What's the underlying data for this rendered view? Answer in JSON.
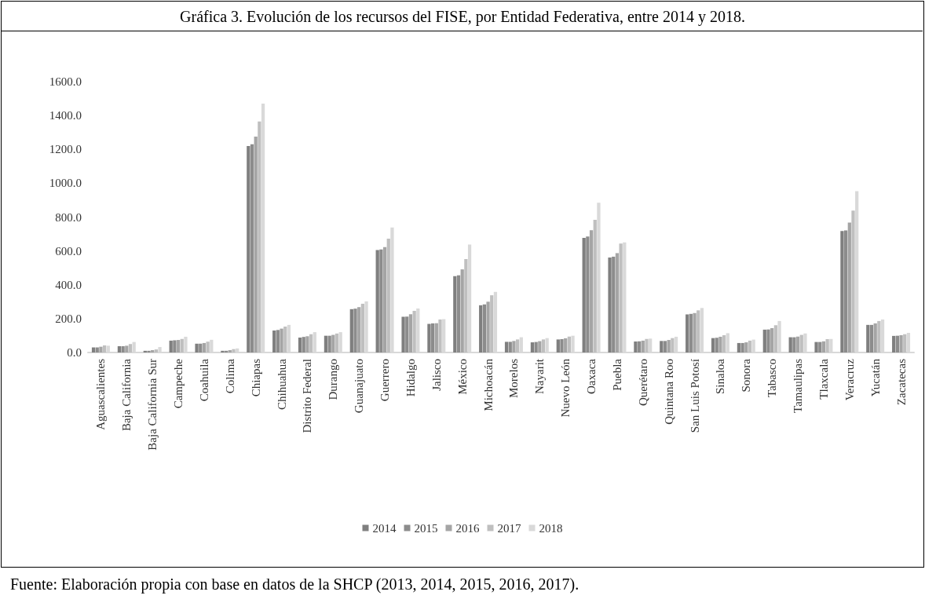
{
  "chart_data": {
    "type": "bar",
    "title": "Gráfica 3. Evolución de los recursos del FISE, por Entidad Federativa, entre 2014 y 2018.",
    "annotations": [
      "Fuente: Elaboración propia con base en datos de la SHCP (2013, 2014, 2015, 2016, 2017)."
    ],
    "categories": [
      "Aguascalientes",
      "Baja California",
      "Baja California Sur",
      "Campeche",
      "Coahuila",
      "Colima",
      "Chiapas",
      "Chihuahua",
      "Distrito Federal",
      "Durango",
      "Guanajuato",
      "Guerrero",
      "Hidalgo",
      "Jalisco",
      "México",
      "Michoacán",
      "Morelos",
      "Nayarit",
      "Nuevo León",
      "Oaxaca",
      "Puebla",
      "Querétaro",
      "Quintana Roo",
      "San Luis Potosí",
      "Sinaloa",
      "Sonora",
      "Tabasco",
      "Tamaulipas",
      "Tlaxcala",
      "Veracruz",
      "Yucatán",
      "Zacatecas"
    ],
    "series": [
      {
        "name": "2014",
        "color": "#7f7f7f",
        "values": [
          30,
          37,
          10,
          70,
          52,
          10,
          1220,
          130,
          88,
          99,
          256,
          605,
          211,
          169,
          451,
          279,
          63,
          60,
          77,
          677,
          561,
          65,
          68,
          225,
          85,
          56,
          135,
          90,
          62,
          718,
          163,
          98
        ]
      },
      {
        "name": "2015",
        "color": "#8c8c8c",
        "values": [
          30,
          37,
          10,
          72,
          52,
          10,
          1230,
          133,
          92,
          99,
          259,
          609,
          212,
          172,
          456,
          284,
          63,
          62,
          79,
          685,
          566,
          66,
          68,
          228,
          87,
          56,
          136,
          90,
          62,
          721,
          163,
          99
        ]
      },
      {
        "name": "2016",
        "color": "#a5a5a5",
        "values": [
          34,
          40,
          14,
          74,
          56,
          14,
          1275,
          141,
          96,
          104,
          268,
          623,
          226,
          173,
          491,
          300,
          68,
          67,
          84,
          722,
          587,
          70,
          74,
          233,
          93,
          60,
          144,
          94,
          66,
          767,
          172,
          102
        ]
      },
      {
        "name": "2017",
        "color": "#bfbfbf",
        "values": [
          42,
          50,
          18,
          80,
          64,
          20,
          1365,
          153,
          108,
          112,
          288,
          672,
          246,
          195,
          552,
          338,
          77,
          77,
          94,
          784,
          643,
          80,
          85,
          249,
          102,
          70,
          161,
          104,
          79,
          838,
          186,
          108
        ]
      },
      {
        "name": "2018",
        "color": "#d9d9d9",
        "values": [
          40,
          62,
          32,
          93,
          75,
          24,
          1470,
          163,
          120,
          120,
          302,
          739,
          260,
          197,
          638,
          358,
          90,
          85,
          99,
          885,
          651,
          82,
          93,
          263,
          114,
          76,
          186,
          113,
          80,
          953,
          195,
          116
        ]
      }
    ],
    "ylim": [
      0,
      1600
    ],
    "yticks": [
      {
        "value": 0,
        "label": "0.0"
      },
      {
        "value": 200,
        "label": "200.0"
      },
      {
        "value": 400,
        "label": "400.0"
      },
      {
        "value": 600,
        "label": "600.0"
      },
      {
        "value": 800,
        "label": "800.0"
      },
      {
        "value": 1000,
        "label": "1000.0"
      },
      {
        "value": 1200,
        "label": "1200.0"
      },
      {
        "value": 1400,
        "label": "1400.0"
      },
      {
        "value": 1600,
        "label": "1600.0"
      }
    ],
    "grid": false,
    "legend": "bottom"
  }
}
